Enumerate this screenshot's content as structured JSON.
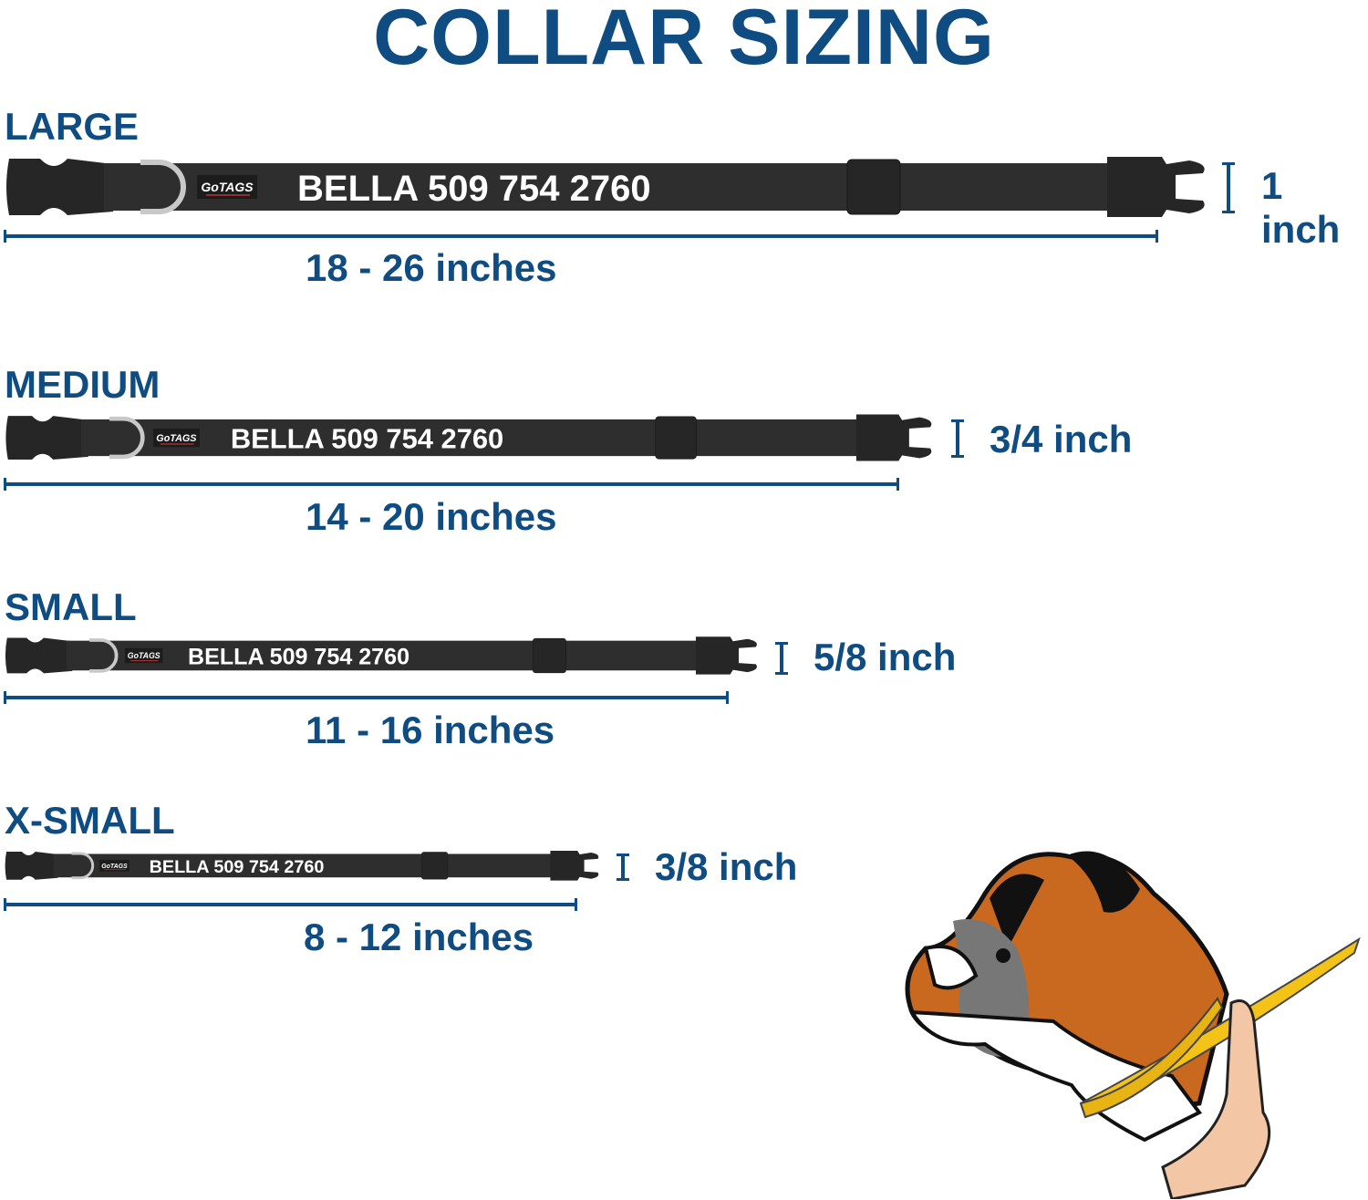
{
  "title": "COLLAR SIZING",
  "colors": {
    "accent": "#0f4c81",
    "collar": "#2b2b2b",
    "ring": "#c8c8c8"
  },
  "sizes": [
    {
      "label": "LARGE",
      "engraving": "BELLA 509 754 2760",
      "logo": "GoTAGS",
      "width": "1 inch",
      "length": "18 - 26 inches"
    },
    {
      "label": "MEDIUM",
      "engraving": "BELLA 509 754 2760",
      "logo": "GoTAGS",
      "width": "3/4 inch",
      "length": "14 - 20 inches"
    },
    {
      "label": "SMALL",
      "engraving": "BELLA 509 754 2760",
      "logo": "GoTAGS",
      "width": "5/8 inch",
      "length": "11 - 16 inches"
    },
    {
      "label": "X-SMALL",
      "engraving": "BELLA 509 754 2760",
      "logo": "GoTAGS",
      "width": "3/8 inch",
      "length": "8 - 12 inches"
    }
  ],
  "illustration": "boxer-dog-measuring-tape"
}
